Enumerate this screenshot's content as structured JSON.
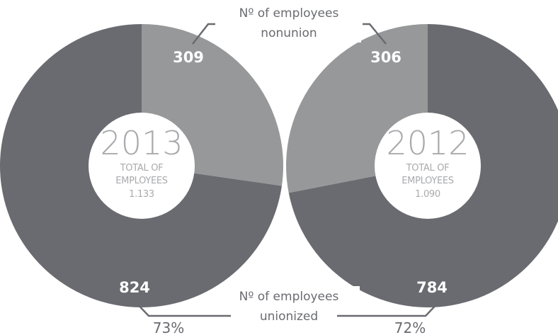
{
  "colors": {
    "unionized": "#6a6b70",
    "nonunion": "#979899",
    "center": "#ffffff",
    "center_text": "#a9aaad",
    "annotation_text": "#6a6b70",
    "leader_line": "#6a6b70",
    "value_text": "#ffffff"
  },
  "annotations": {
    "nonunion_line1": "Nº of employees",
    "nonunion_line2": "nonunion",
    "unionized_line1": "Nº of employees",
    "unionized_line2": "unionized"
  },
  "chart_data": [
    {
      "type": "pie",
      "center_year": "2013",
      "center_line1": "TOTAL OF",
      "center_line2": "EMPLOYEES",
      "total": "1.133",
      "labels": [
        "Nº of employees nonunion",
        "Nº of employees unionized"
      ],
      "values": [
        309,
        824
      ],
      "value_labels": [
        "309",
        "824"
      ],
      "percent_label": "73%"
    },
    {
      "type": "pie",
      "center_year": "2012",
      "center_line1": "TOTAL OF",
      "center_line2": "EMPLOYEES",
      "total": "1.090",
      "labels": [
        "Nº of employees nonunion",
        "Nº of employees unionized"
      ],
      "values": [
        306,
        784
      ],
      "value_labels": [
        "306",
        "784"
      ],
      "percent_label": "72%"
    }
  ]
}
